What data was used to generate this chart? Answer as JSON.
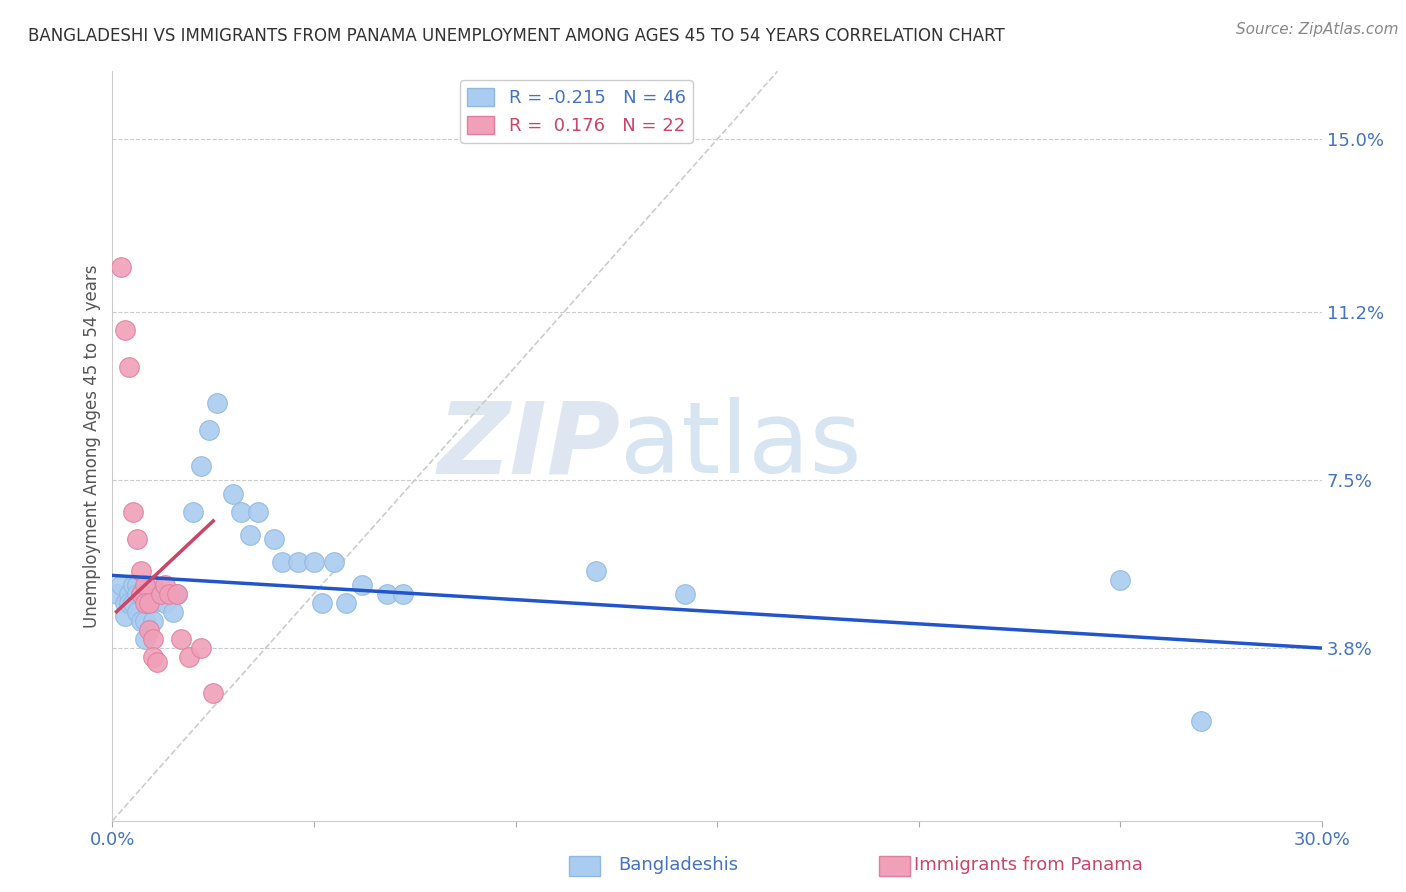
{
  "title": "BANGLADESHI VS IMMIGRANTS FROM PANAMA UNEMPLOYMENT AMONG AGES 45 TO 54 YEARS CORRELATION CHART",
  "source": "Source: ZipAtlas.com",
  "ylabel": "Unemployment Among Ages 45 to 54 years",
  "xlim": [
    0.0,
    0.3
  ],
  "ylim": [
    0.0,
    0.165
  ],
  "x_ticks": [
    0.0,
    0.05,
    0.1,
    0.15,
    0.2,
    0.25,
    0.3
  ],
  "right_y_ticks": [
    0.038,
    0.075,
    0.112,
    0.15
  ],
  "right_y_tick_labels": [
    "3.8%",
    "7.5%",
    "11.2%",
    "15.0%"
  ],
  "legend_entries": [
    {
      "label": "R = -0.215   N = 46",
      "color": "#a8c8f0"
    },
    {
      "label": "R =  0.176   N = 22",
      "color": "#f4a0b0"
    }
  ],
  "bangladeshi_scatter": [
    [
      0.001,
      0.05
    ],
    [
      0.002,
      0.052
    ],
    [
      0.003,
      0.048
    ],
    [
      0.003,
      0.045
    ],
    [
      0.004,
      0.05
    ],
    [
      0.004,
      0.048
    ],
    [
      0.005,
      0.052
    ],
    [
      0.005,
      0.048
    ],
    [
      0.006,
      0.052
    ],
    [
      0.006,
      0.05
    ],
    [
      0.006,
      0.046
    ],
    [
      0.007,
      0.05
    ],
    [
      0.007,
      0.044
    ],
    [
      0.008,
      0.05
    ],
    [
      0.008,
      0.044
    ],
    [
      0.008,
      0.04
    ],
    [
      0.009,
      0.048
    ],
    [
      0.01,
      0.052
    ],
    [
      0.01,
      0.048
    ],
    [
      0.01,
      0.044
    ],
    [
      0.012,
      0.05
    ],
    [
      0.013,
      0.048
    ],
    [
      0.015,
      0.046
    ],
    [
      0.016,
      0.05
    ],
    [
      0.02,
      0.068
    ],
    [
      0.022,
      0.078
    ],
    [
      0.024,
      0.086
    ],
    [
      0.026,
      0.092
    ],
    [
      0.03,
      0.072
    ],
    [
      0.032,
      0.068
    ],
    [
      0.034,
      0.063
    ],
    [
      0.036,
      0.068
    ],
    [
      0.04,
      0.062
    ],
    [
      0.042,
      0.057
    ],
    [
      0.046,
      0.057
    ],
    [
      0.05,
      0.057
    ],
    [
      0.052,
      0.048
    ],
    [
      0.055,
      0.057
    ],
    [
      0.058,
      0.048
    ],
    [
      0.062,
      0.052
    ],
    [
      0.068,
      0.05
    ],
    [
      0.072,
      0.05
    ],
    [
      0.12,
      0.055
    ],
    [
      0.142,
      0.05
    ],
    [
      0.25,
      0.053
    ],
    [
      0.27,
      0.022
    ]
  ],
  "panama_scatter": [
    [
      0.002,
      0.122
    ],
    [
      0.003,
      0.108
    ],
    [
      0.004,
      0.1
    ],
    [
      0.005,
      0.068
    ],
    [
      0.006,
      0.062
    ],
    [
      0.007,
      0.055
    ],
    [
      0.007,
      0.05
    ],
    [
      0.008,
      0.052
    ],
    [
      0.008,
      0.048
    ],
    [
      0.009,
      0.048
    ],
    [
      0.009,
      0.042
    ],
    [
      0.01,
      0.04
    ],
    [
      0.01,
      0.036
    ],
    [
      0.011,
      0.035
    ],
    [
      0.012,
      0.05
    ],
    [
      0.013,
      0.052
    ],
    [
      0.014,
      0.05
    ],
    [
      0.016,
      0.05
    ],
    [
      0.017,
      0.04
    ],
    [
      0.019,
      0.036
    ],
    [
      0.022,
      0.038
    ],
    [
      0.025,
      0.028
    ]
  ],
  "bangladeshi_line": {
    "x": [
      0.0,
      0.3
    ],
    "y": [
      0.054,
      0.038
    ]
  },
  "panama_line": {
    "x": [
      0.001,
      0.025
    ],
    "y": [
      0.046,
      0.066
    ]
  },
  "diagonal_line": {
    "x": [
      0.0,
      0.165
    ],
    "y": [
      0.0,
      0.165
    ]
  },
  "scatter_size": 200,
  "blue_color": "#aaccf0",
  "pink_color": "#f0a0b8",
  "blue_edge_color": "#90b8e0",
  "pink_edge_color": "#e080a0",
  "blue_line_color": "#2255cc",
  "pink_line_color": "#cc4466",
  "diagonal_color": "#cccccc",
  "watermark_zip": "ZIP",
  "watermark_atlas": "atlas",
  "bg_color": "#ffffff",
  "grid_color": "#cccccc"
}
